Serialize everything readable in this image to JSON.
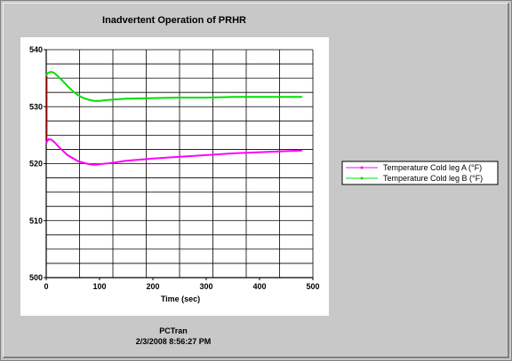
{
  "chart_data": {
    "type": "line",
    "title": "Inadvertent Operation of PRHR",
    "xlabel": "Time (sec)",
    "ylabel": "",
    "xlim": [
      0,
      500
    ],
    "ylim": [
      500,
      540
    ],
    "xticks": [
      0,
      100,
      200,
      300,
      400,
      500
    ],
    "yticks": [
      500,
      510,
      520,
      530,
      540
    ],
    "grid": true,
    "legend_position": "right",
    "series": [
      {
        "name": "Temperature Cold leg A (°F)",
        "color": "#ff00ff",
        "x": [
          0,
          2,
          5,
          10,
          15,
          25,
          40,
          60,
          80,
          90,
          100,
          120,
          150,
          200,
          250,
          300,
          350,
          400,
          450,
          480
        ],
        "y": [
          523.6,
          524.0,
          524.3,
          524.2,
          523.8,
          522.8,
          521.5,
          520.4,
          519.9,
          519.8,
          519.9,
          520.1,
          520.5,
          520.9,
          521.2,
          521.5,
          521.8,
          522.0,
          522.2,
          522.3
        ]
      },
      {
        "name": "Temperature Cold leg B (°F)",
        "color": "#00e000",
        "x": [
          0,
          2,
          5,
          10,
          15,
          20,
          30,
          40,
          50,
          60,
          70,
          80,
          90,
          100,
          120,
          150,
          200,
          250,
          300,
          350,
          400,
          450,
          480
        ],
        "y": [
          535.4,
          535.8,
          536.0,
          536.1,
          535.9,
          535.5,
          534.6,
          533.6,
          532.7,
          532.0,
          531.5,
          531.2,
          531.0,
          531.0,
          531.2,
          531.4,
          531.5,
          531.6,
          531.6,
          531.7,
          531.7,
          531.7,
          531.7
        ]
      }
    ]
  },
  "footer": {
    "source": "PCTran",
    "timestamp": "2/3/2008 8:56:27 PM"
  },
  "colors": {
    "panel": "#ffffff",
    "background": "#c8c8c8",
    "grid": "#000000",
    "start_marker": "#ff0000"
  }
}
